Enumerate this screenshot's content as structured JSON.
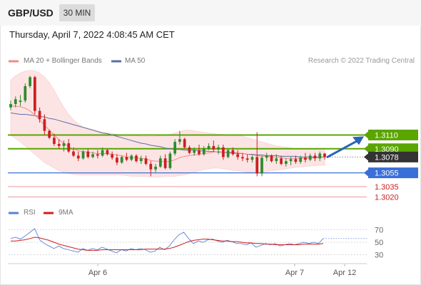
{
  "header": {
    "symbol": "GBP/USD",
    "timeframe": "30 MIN",
    "datetime": "Thursday, April 7, 2022 4:08:45 AM CET"
  },
  "legend": {
    "ma20": "MA 20 + Bollinger Bands",
    "ma50": "MA 50",
    "copyright": "Research © 2022 Trading Central",
    "rsi": "RSI",
    "rsi_ma": "9MA"
  },
  "colors": {
    "bull": "#2e8b2e",
    "bear": "#cc1f1f",
    "ma20": "#f08a8a",
    "ma50": "#5a6ea8",
    "band_fill": "#fde4e4",
    "resistance": "#5aa500",
    "support": "#3a6fd8",
    "support_faint": "#e89898",
    "arrow": "#2a63b8",
    "current": "#333333",
    "rsi": "#5b7fd8",
    "rsi_ma": "#cc1f1f"
  },
  "chart_data": {
    "type": "candlestick",
    "x_ticks": [
      "Apr 6",
      "Apr 7",
      "Apr 12"
    ],
    "ylim": [
      1.3008,
      1.3215
    ],
    "candles": [
      [
        1.315,
        1.316,
        1.3146,
        1.3155
      ],
      [
        1.3155,
        1.3166,
        1.315,
        1.3162
      ],
      [
        1.3158,
        1.3168,
        1.3152,
        1.316
      ],
      [
        1.316,
        1.3185,
        1.3157,
        1.3181
      ],
      [
        1.3181,
        1.3196,
        1.3178,
        1.3194
      ],
      [
        1.3194,
        1.3196,
        1.314,
        1.3145
      ],
      [
        1.3145,
        1.315,
        1.3128,
        1.3133
      ],
      [
        1.3133,
        1.314,
        1.311,
        1.3116
      ],
      [
        1.3116,
        1.3118,
        1.3104,
        1.3106
      ],
      [
        1.3106,
        1.3112,
        1.3094,
        1.3097
      ],
      [
        1.3097,
        1.3104,
        1.309,
        1.3094
      ],
      [
        1.3094,
        1.3102,
        1.3086,
        1.3098
      ],
      [
        1.3098,
        1.3104,
        1.3084,
        1.3086
      ],
      [
        1.3086,
        1.3092,
        1.3078,
        1.308
      ],
      [
        1.308,
        1.3086,
        1.3072,
        1.3076
      ],
      [
        1.3076,
        1.3088,
        1.3074,
        1.3086
      ],
      [
        1.3086,
        1.309,
        1.3076,
        1.3078
      ],
      [
        1.3078,
        1.3086,
        1.3076,
        1.3082
      ],
      [
        1.3082,
        1.3088,
        1.3076,
        1.308
      ],
      [
        1.308,
        1.3092,
        1.3078,
        1.3088
      ],
      [
        1.3088,
        1.309,
        1.308,
        1.3082
      ],
      [
        1.3082,
        1.3086,
        1.3074,
        1.3077
      ],
      [
        1.3077,
        1.3082,
        1.3066,
        1.307
      ],
      [
        1.307,
        1.308,
        1.3068,
        1.3078
      ],
      [
        1.3078,
        1.3084,
        1.3072,
        1.3074
      ],
      [
        1.3074,
        1.3082,
        1.3072,
        1.308
      ],
      [
        1.308,
        1.3082,
        1.307,
        1.3072
      ],
      [
        1.3072,
        1.308,
        1.3068,
        1.3076
      ],
      [
        1.3076,
        1.308,
        1.3066,
        1.3068
      ],
      [
        1.3068,
        1.3072,
        1.305,
        1.306
      ],
      [
        1.306,
        1.3068,
        1.3056,
        1.3064
      ],
      [
        1.3064,
        1.308,
        1.3062,
        1.3076
      ],
      [
        1.3076,
        1.3082,
        1.306,
        1.3062
      ],
      [
        1.3062,
        1.3086,
        1.306,
        1.3083
      ],
      [
        1.3083,
        1.3104,
        1.308,
        1.31
      ],
      [
        1.31,
        1.3116,
        1.3096,
        1.3104
      ],
      [
        1.3104,
        1.3106,
        1.309,
        1.3092
      ],
      [
        1.3092,
        1.3095,
        1.3082,
        1.3084
      ],
      [
        1.3084,
        1.3092,
        1.308,
        1.3088
      ],
      [
        1.3088,
        1.3096,
        1.308,
        1.3082
      ],
      [
        1.3082,
        1.3094,
        1.308,
        1.309
      ],
      [
        1.309,
        1.3098,
        1.3088,
        1.3094
      ],
      [
        1.3094,
        1.3102,
        1.3086,
        1.3089
      ],
      [
        1.3089,
        1.3096,
        1.3082,
        1.3092
      ],
      [
        1.3092,
        1.3096,
        1.3074,
        1.3078
      ],
      [
        1.3078,
        1.309,
        1.3076,
        1.3088
      ],
      [
        1.3088,
        1.3092,
        1.308,
        1.3082
      ],
      [
        1.3082,
        1.3088,
        1.3074,
        1.3078
      ],
      [
        1.3078,
        1.3084,
        1.3072,
        1.3076
      ],
      [
        1.3076,
        1.3082,
        1.307,
        1.3074
      ],
      [
        1.3074,
        1.308,
        1.307,
        1.3078
      ],
      [
        1.3078,
        1.3114,
        1.305,
        1.3054
      ],
      [
        1.3054,
        1.308,
        1.305,
        1.3077
      ],
      [
        1.3077,
        1.3084,
        1.3072,
        1.308
      ],
      [
        1.308,
        1.3082,
        1.307,
        1.3072
      ],
      [
        1.3072,
        1.3082,
        1.3068,
        1.3076
      ],
      [
        1.3076,
        1.308,
        1.3066,
        1.3068
      ],
      [
        1.3068,
        1.3076,
        1.3064,
        1.3072
      ],
      [
        1.3072,
        1.3078,
        1.3066,
        1.3075
      ],
      [
        1.3075,
        1.308,
        1.3068,
        1.3071
      ],
      [
        1.3071,
        1.308,
        1.3068,
        1.3077
      ],
      [
        1.3077,
        1.3084,
        1.307,
        1.3074
      ],
      [
        1.3074,
        1.3083,
        1.3072,
        1.308
      ],
      [
        1.308,
        1.3084,
        1.3072,
        1.3076
      ],
      [
        1.3076,
        1.3086,
        1.3072,
        1.3083
      ],
      [
        1.3083,
        1.3084,
        1.3074,
        1.3078
      ]
    ],
    "ma20": [
      1.3152,
      1.3152,
      1.3151,
      1.3149,
      1.3145,
      1.3139,
      1.3132,
      1.3124,
      1.3117,
      1.311,
      1.3103,
      1.3098,
      1.3093,
      1.309,
      1.3087,
      1.3086,
      1.3085,
      1.3084,
      1.3083,
      1.3083,
      1.3083,
      1.3082,
      1.3081,
      1.308,
      1.3078,
      1.3077,
      1.3077,
      1.3076,
      1.3075,
      1.3073,
      1.3072,
      1.3072,
      1.3071,
      1.3072,
      1.3074,
      1.3077,
      1.3079,
      1.308,
      1.3081,
      1.3082,
      1.3083,
      1.3084,
      1.3085,
      1.3086,
      1.3085,
      1.3085,
      1.3085,
      1.3084,
      1.3083,
      1.3082,
      1.3081,
      1.308,
      1.3079,
      1.3079,
      1.3078,
      1.3078,
      1.3077,
      1.3076,
      1.3076,
      1.3076,
      1.3076,
      1.3076,
      1.3076,
      1.3077,
      1.3077,
      1.3078
    ],
    "ma50": [
      1.3142,
      1.3141,
      1.314,
      1.314,
      1.3139,
      1.3138,
      1.3137,
      1.3136,
      1.3134,
      1.3133,
      1.3131,
      1.3129,
      1.3127,
      1.3125,
      1.3123,
      1.3121,
      1.3119,
      1.3117,
      1.3115,
      1.3113,
      1.3112,
      1.311,
      1.3108,
      1.3106,
      1.3104,
      1.3102,
      1.31,
      1.3098,
      1.3097,
      1.3095,
      1.3094,
      1.3093,
      1.3091,
      1.309,
      1.3089,
      1.3089,
      1.3088,
      1.3088,
      1.3088,
      1.3087,
      1.3087,
      1.3086,
      1.3086,
      1.3085,
      1.3085,
      1.3084,
      1.3084,
      1.3083,
      1.3083,
      1.3082,
      1.3082,
      1.3081,
      1.3081,
      1.308,
      1.308,
      1.308,
      1.3079,
      1.3079,
      1.3079,
      1.3079,
      1.3078,
      1.3078,
      1.3078,
      1.3078,
      1.3078,
      1.3078
    ],
    "bb_upper": [
      1.319,
      1.3196,
      1.32,
      1.3203,
      1.3204,
      1.3203,
      1.32,
      1.3194,
      1.3186,
      1.3175,
      1.3162,
      1.315,
      1.314,
      1.3132,
      1.3126,
      1.3122,
      1.312,
      1.3118,
      1.3116,
      1.3114,
      1.3113,
      1.3112,
      1.3111,
      1.311,
      1.311,
      1.3109,
      1.3109,
      1.3108,
      1.3108,
      1.3108,
      1.3108,
      1.3109,
      1.311,
      1.3111,
      1.3113,
      1.3115,
      1.3117,
      1.3117,
      1.3116,
      1.3115,
      1.3114,
      1.3113,
      1.3112,
      1.3111,
      1.3111,
      1.311,
      1.311,
      1.3109,
      1.3108,
      1.3106,
      1.3104,
      1.3102,
      1.31,
      1.3098,
      1.3096,
      1.3094,
      1.3093,
      1.3092,
      1.3091,
      1.309,
      1.309,
      1.3089,
      1.3089,
      1.3089,
      1.3089,
      1.3089
    ],
    "bb_lower": [
      1.311,
      1.3105,
      1.31,
      1.3094,
      1.3088,
      1.3082,
      1.3076,
      1.307,
      1.3066,
      1.3062,
      1.3058,
      1.3056,
      1.3054,
      1.3053,
      1.3052,
      1.3052,
      1.3052,
      1.3052,
      1.3052,
      1.3052,
      1.3052,
      1.3052,
      1.3052,
      1.3052,
      1.3051,
      1.305,
      1.305,
      1.305,
      1.305,
      1.3049,
      1.3049,
      1.3049,
      1.305,
      1.305,
      1.305,
      1.3051,
      1.3052,
      1.3054,
      1.3056,
      1.3058,
      1.306,
      1.3061,
      1.3062,
      1.3062,
      1.3061,
      1.306,
      1.3059,
      1.3058,
      1.3057,
      1.3056,
      1.3056,
      1.3056,
      1.3056,
      1.3057,
      1.3058,
      1.3059,
      1.306,
      1.3061,
      1.3062,
      1.3063,
      1.3064,
      1.3064,
      1.3065,
      1.3065,
      1.3066,
      1.3066
    ],
    "levels": [
      {
        "value": 1.311,
        "label": "1.3110",
        "kind": "resistance"
      },
      {
        "value": 1.309,
        "label": "1.3090",
        "kind": "resistance"
      },
      {
        "value": 1.3078,
        "label": "1.3078",
        "kind": "current"
      },
      {
        "value": 1.3055,
        "label": "1.3055",
        "kind": "support"
      },
      {
        "value": 1.3035,
        "label": "1.3035",
        "kind": "support_faint"
      },
      {
        "value": 1.302,
        "label": "1.3020",
        "kind": "support_faint"
      }
    ],
    "rsi": {
      "ticks": [
        70,
        50,
        30
      ],
      "ylim": [
        18,
        82
      ],
      "rsi": [
        56,
        58,
        55,
        60,
        66,
        72,
        54,
        48,
        44,
        40,
        44,
        40,
        38,
        36,
        34,
        40,
        37,
        40,
        38,
        42,
        39,
        36,
        33,
        38,
        36,
        40,
        38,
        40,
        38,
        34,
        36,
        42,
        38,
        44,
        54,
        62,
        66,
        56,
        48,
        52,
        50,
        54,
        55,
        52,
        50,
        53,
        51,
        48,
        48,
        46,
        49,
        42,
        45,
        48,
        46,
        48,
        44,
        46,
        48,
        46,
        48,
        50,
        48,
        50,
        48,
        56
      ],
      "ma": [
        52,
        52,
        53,
        54,
        56,
        58,
        57,
        55,
        53,
        50,
        47,
        45,
        43,
        41,
        39,
        38,
        37,
        37,
        37,
        38,
        38,
        38,
        38,
        38,
        38,
        38,
        38,
        38,
        39,
        39,
        39,
        39,
        39,
        40,
        42,
        45,
        48,
        51,
        53,
        54,
        55,
        55,
        54,
        53,
        52,
        52,
        51,
        51,
        50,
        49,
        49,
        48,
        48,
        47,
        47,
        46,
        46,
        46,
        46,
        46,
        46,
        47,
        47,
        47,
        47,
        48
      ]
    }
  }
}
